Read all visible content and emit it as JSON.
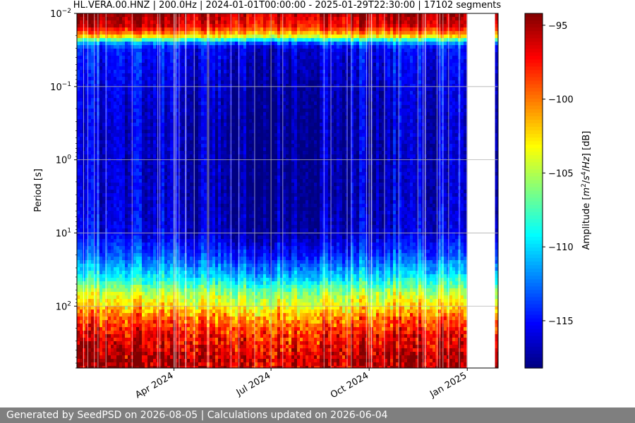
{
  "chart_data": {
    "type": "heatmap",
    "title": "HL.VERA.00.HNZ | 200.0Hz | 2024-01-01T00:00:00 - 2025-01-29T22:30:00 | 17102 segments",
    "ylabel": "Period [s]",
    "yscale": "log",
    "y_inverted": true,
    "ylim_period_s": [
      0.01,
      700
    ],
    "y_ticks": [
      {
        "value": 0.01,
        "base": "10",
        "exp": "−2"
      },
      {
        "value": 0.1,
        "base": "10",
        "exp": "−1"
      },
      {
        "value": 1,
        "base": "10",
        "exp": "0"
      },
      {
        "value": 10,
        "base": "10",
        "exp": "1"
      },
      {
        "value": 100,
        "base": "10",
        "exp": "2"
      }
    ],
    "xlim": [
      "2024-01-01T00:00:00",
      "2025-01-29T22:30:00"
    ],
    "x_ticks": [
      {
        "date": "2024-04-01",
        "label": "Apr 2024"
      },
      {
        "date": "2024-07-01",
        "label": "Jul 2024"
      },
      {
        "date": "2024-10-01",
        "label": "Oct 2024"
      },
      {
        "date": "2025-01-01",
        "label": "Jan 2025"
      }
    ],
    "grid": true,
    "data_gap": [
      "2025-01-01",
      "2025-01-27"
    ],
    "colorbar": {
      "label": "Amplitude",
      "units": "[dB]",
      "colormap": "jet",
      "range_db": [
        -118.2,
        -94.2
      ],
      "ticks": [
        -95,
        -100,
        -105,
        -110,
        -115
      ],
      "tick_labels": [
        "−95",
        "−100",
        "−105",
        "−110",
        "−115"
      ]
    },
    "amplitude_profile_db": [
      {
        "period_s": 0.01,
        "db": -94.5
      },
      {
        "period_s": 0.015,
        "db": -96
      },
      {
        "period_s": 0.02,
        "db": -101
      },
      {
        "period_s": 0.025,
        "db": -111
      },
      {
        "period_s": 0.03,
        "db": -114.5
      },
      {
        "period_s": 0.05,
        "db": -115
      },
      {
        "period_s": 0.1,
        "db": -115.5
      },
      {
        "period_s": 0.3,
        "db": -116
      },
      {
        "period_s": 1,
        "db": -116
      },
      {
        "period_s": 3,
        "db": -116
      },
      {
        "period_s": 10,
        "db": -115.5
      },
      {
        "period_s": 20,
        "db": -113
      },
      {
        "period_s": 40,
        "db": -109
      },
      {
        "period_s": 70,
        "db": -104
      },
      {
        "period_s": 100,
        "db": -102
      },
      {
        "period_s": 150,
        "db": -99
      },
      {
        "period_s": 250,
        "db": -96.5
      },
      {
        "period_s": 450,
        "db": -95
      },
      {
        "period_s": 700,
        "db": -94.5
      }
    ]
  },
  "footer": {
    "text": "Generated by SeedPSD on 2026-08-05 | Calculations updated on 2026-06-04"
  }
}
